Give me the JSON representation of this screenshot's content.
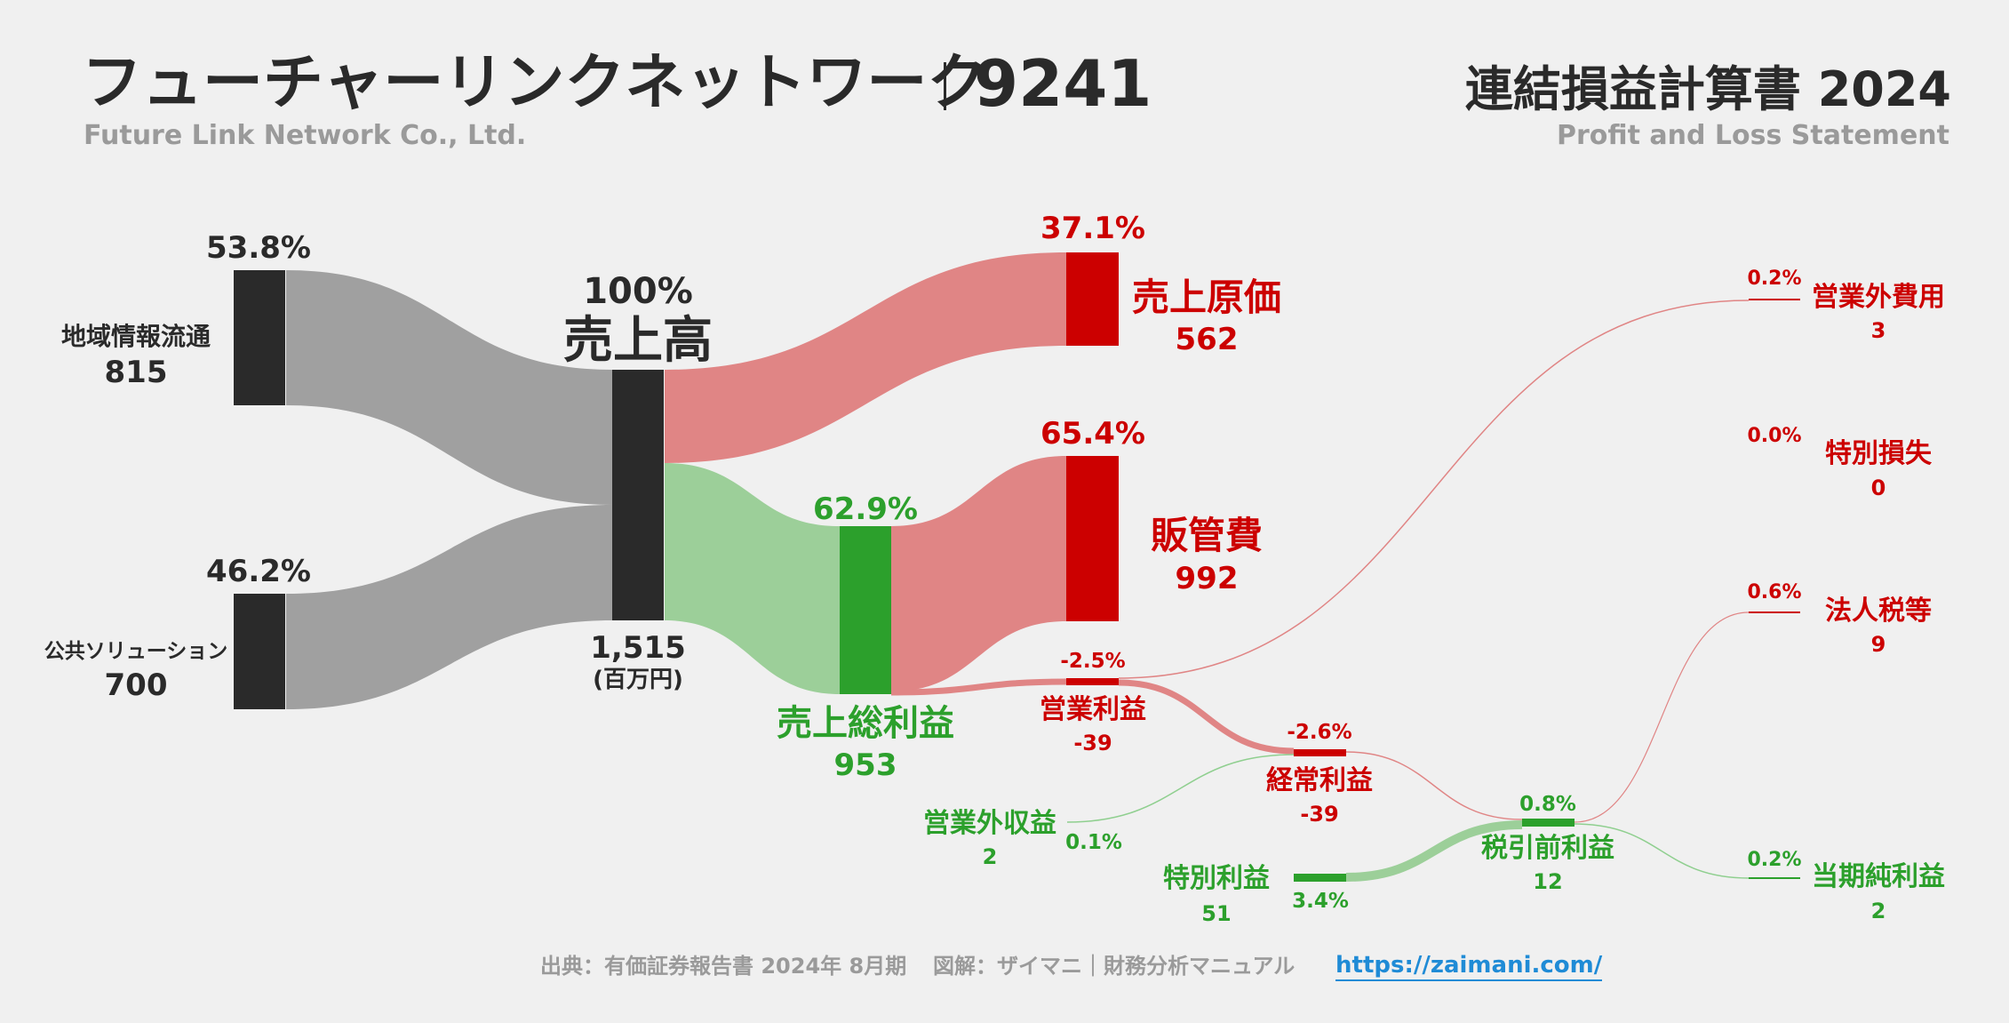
{
  "header": {
    "company": "フューチャーリンクネットワーク",
    "code": "9241",
    "company_en": "Future Link Network Co., Ltd.",
    "statement_title": "連結損益計算書 2024",
    "statement_en": "Profit and Loss Statement"
  },
  "footer": {
    "source": "出典：有価証券報告書 2024年 8月期",
    "credit": "図解：ザイマニ｜財務分析マニュアル",
    "url": "https://zaimani.com/"
  },
  "colors": {
    "dark": "#2a2a2a",
    "gray_flow": "#a0a0a0",
    "red_node": "#cc0000",
    "red_flow": "#e08585",
    "green_node": "#2ca02c",
    "green_flow": "#9ccf99",
    "background": "#f0f0f0",
    "link": "#1f8bd6"
  },
  "chart_data": {
    "type": "sankey",
    "unit": "(百万円)",
    "nodes": {
      "seg1": {
        "name": "地域情報流通",
        "value": "815",
        "pct": "53.8%"
      },
      "seg2": {
        "name": "公共ソリューション",
        "value": "700",
        "pct": "46.2%"
      },
      "revenue": {
        "name": "売上高",
        "value": "1,515",
        "pct": "100%"
      },
      "cogs": {
        "name": "売上原価",
        "value": "562",
        "pct": "37.1%"
      },
      "gross": {
        "name": "売上総利益",
        "value": "953",
        "pct": "62.9%"
      },
      "sga": {
        "name": "販管費",
        "value": "992",
        "pct": "65.4%"
      },
      "op": {
        "name": "営業利益",
        "value": "-39",
        "pct": "-2.5%"
      },
      "nonop_inc": {
        "name": "営業外収益",
        "value": "2",
        "pct": "0.1%"
      },
      "nonop_exp": {
        "name": "営業外費用",
        "value": "3",
        "pct": "0.2%"
      },
      "ordinary": {
        "name": "経常利益",
        "value": "-39",
        "pct": "-2.6%"
      },
      "special_gain": {
        "name": "特別利益",
        "value": "51",
        "pct": "3.4%"
      },
      "special_loss": {
        "name": "特別損失",
        "value": "0",
        "pct": "0.0%"
      },
      "pretax": {
        "name": "税引前利益",
        "value": "12",
        "pct": "0.8%"
      },
      "tax": {
        "name": "法人税等",
        "value": "9",
        "pct": "0.6%"
      },
      "net": {
        "name": "当期純利益",
        "value": "2",
        "pct": "0.2%"
      }
    },
    "links": [
      {
        "from": "地域情報流通",
        "to": "売上高",
        "value": 815
      },
      {
        "from": "公共ソリューション",
        "to": "売上高",
        "value": 700
      },
      {
        "from": "売上高",
        "to": "売上原価",
        "value": 562
      },
      {
        "from": "売上高",
        "to": "売上総利益",
        "value": 953
      },
      {
        "from": "売上総利益",
        "to": "販管費",
        "value": 992
      },
      {
        "from": "売上総利益",
        "to": "営業利益",
        "value": -39
      },
      {
        "from": "営業利益",
        "to": "営業外費用",
        "value": 3
      },
      {
        "from": "営業利益",
        "to": "経常利益",
        "value": -39
      },
      {
        "from": "営業外収益",
        "to": "経常利益",
        "value": 2
      },
      {
        "from": "経常利益",
        "to": "税引前利益",
        "value": -39
      },
      {
        "from": "特別利益",
        "to": "税引前利益",
        "value": 51
      },
      {
        "from": "税引前利益",
        "to": "法人税等",
        "value": 9
      },
      {
        "from": "税引前利益",
        "to": "当期純利益",
        "value": 2
      }
    ]
  }
}
